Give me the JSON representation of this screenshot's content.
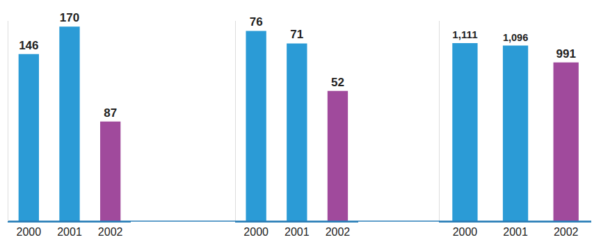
{
  "chart_data": [
    {
      "type": "bar",
      "categories": [
        "2000",
        "2001",
        "2002"
      ],
      "values": [
        146,
        170,
        87
      ],
      "colors": [
        "#2b9bd6",
        "#2b9bd6",
        "#a04a9c"
      ],
      "ylim": [
        0,
        175
      ],
      "data_labels": true,
      "tick_labels": "x"
    },
    {
      "type": "bar",
      "categories": [
        "2000",
        "2001",
        "2002"
      ],
      "values": [
        76,
        71,
        52
      ],
      "colors": [
        "#2b9bd6",
        "#2b9bd6",
        "#a04a9c"
      ],
      "ylim": [
        0,
        80
      ],
      "data_labels": true,
      "tick_labels": "x"
    },
    {
      "type": "bar",
      "categories": [
        "2000",
        "2001",
        "2002"
      ],
      "values": [
        1111,
        1096,
        991
      ],
      "value_labels": [
        "1,111",
        "1,096",
        "991"
      ],
      "colors": [
        "#2b9bd6",
        "#2b9bd6",
        "#a04a9c"
      ],
      "ylim": [
        0,
        1250
      ],
      "data_labels": true,
      "tick_labels": "x"
    }
  ]
}
